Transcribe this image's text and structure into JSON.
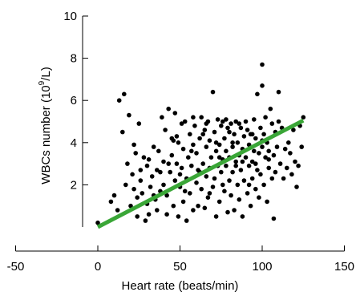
{
  "chart_data": {
    "type": "scatter",
    "title": "",
    "xlabel": "Heart rate (beats/min)",
    "ylabel": "WBCs number (10⁹/L)",
    "ylabel_parts": {
      "pre": "WBCs number (10",
      "sup": "9",
      "post": "/L)"
    },
    "xlim": [
      -50,
      150
    ],
    "ylim": [
      0,
      10
    ],
    "x_ticks": [
      -50,
      0,
      50,
      100,
      150
    ],
    "y_ticks": [
      2,
      4,
      6,
      8,
      10
    ],
    "grid": false,
    "legend": "none",
    "colors": {
      "points": "#000000",
      "fit_line": "#3aa637"
    },
    "series": [
      {
        "points": [
          [
            0,
            0.2
          ],
          [
            8,
            1.2
          ],
          [
            10,
            1.5
          ],
          [
            12,
            0.8
          ],
          [
            13,
            6.0
          ],
          [
            15,
            4.5
          ],
          [
            16,
            6.3
          ],
          [
            17,
            2.0
          ],
          [
            18,
            3.0
          ],
          [
            19,
            5.3
          ],
          [
            20,
            1.0
          ],
          [
            21,
            2.5
          ],
          [
            22,
            1.8
          ],
          [
            23,
            3.5
          ],
          [
            24,
            0.5
          ],
          [
            24,
            1.4
          ],
          [
            25,
            4.9
          ],
          [
            26,
            2.2
          ],
          [
            27,
            1.6
          ],
          [
            28,
            3.3
          ],
          [
            29,
            0.3
          ],
          [
            30,
            2.9
          ],
          [
            30,
            1.1
          ],
          [
            31,
            0.6
          ],
          [
            32,
            1.9
          ],
          [
            33,
            2.4
          ],
          [
            34,
            3.8
          ],
          [
            35,
            1.3
          ],
          [
            36,
            2.7
          ],
          [
            36,
            0.8
          ],
          [
            37,
            3.6
          ],
          [
            38,
            1.7
          ],
          [
            39,
            5.2
          ],
          [
            40,
            3.1
          ],
          [
            40,
            2.0
          ],
          [
            41,
            4.6
          ],
          [
            42,
            1.5
          ],
          [
            42,
            0.6
          ],
          [
            43,
            5.6
          ],
          [
            44,
            2.6
          ],
          [
            45,
            3.4
          ],
          [
            45,
            4.2
          ],
          [
            46,
            1.0
          ],
          [
            47,
            2.2
          ],
          [
            47,
            5.4
          ],
          [
            48,
            3.0
          ],
          [
            49,
            0.5
          ],
          [
            49,
            4.0
          ],
          [
            50,
            1.9
          ],
          [
            51,
            2.8
          ],
          [
            51,
            4.9
          ],
          [
            52,
            3.7
          ],
          [
            52,
            1.2
          ],
          [
            53,
            5.0
          ],
          [
            54,
            2.3
          ],
          [
            54,
            0.3
          ],
          [
            55,
            3.3
          ],
          [
            56,
            4.4
          ],
          [
            56,
            1.6
          ],
          [
            57,
            2.9
          ],
          [
            58,
            3.9
          ],
          [
            58,
            0.8
          ],
          [
            59,
            4.8
          ],
          [
            60,
            2.1
          ],
          [
            60,
            3.5
          ],
          [
            61,
            1.0
          ],
          [
            62,
            4.2
          ],
          [
            62,
            2.6
          ],
          [
            63,
            5.2
          ],
          [
            63,
            1.8
          ],
          [
            64,
            3.0
          ],
          [
            65,
            4.6
          ],
          [
            65,
            0.9
          ],
          [
            66,
            2.4
          ],
          [
            66,
            3.8
          ],
          [
            67,
            5.0
          ],
          [
            67,
            1.4
          ],
          [
            68,
            2.8
          ],
          [
            68,
            4.1
          ],
          [
            69,
            3.3
          ],
          [
            70,
            6.4
          ],
          [
            70,
            1.9
          ],
          [
            71,
            4.5
          ],
          [
            71,
            2.3
          ],
          [
            72,
            3.6
          ],
          [
            72,
            0.5
          ],
          [
            73,
            5.1
          ],
          [
            73,
            2.9
          ],
          [
            74,
            3.9
          ],
          [
            74,
            1.2
          ],
          [
            75,
            4.8
          ],
          [
            75,
            2.6
          ],
          [
            76,
            3.2
          ],
          [
            76,
            5.0
          ],
          [
            77,
            1.7
          ],
          [
            77,
            4.2
          ],
          [
            78,
            2.9
          ],
          [
            78,
            3.6
          ],
          [
            79,
            0.7
          ],
          [
            79,
            4.7
          ],
          [
            80,
            2.2
          ],
          [
            80,
            3.3
          ],
          [
            81,
            4.9
          ],
          [
            81,
            1.5
          ],
          [
            82,
            3.8
          ],
          [
            82,
            2.6
          ],
          [
            83,
            4.4
          ],
          [
            83,
            0.8
          ],
          [
            84,
            3.1
          ],
          [
            84,
            5.0
          ],
          [
            85,
            2.0
          ],
          [
            85,
            4.0
          ],
          [
            86,
            3.4
          ],
          [
            86,
            1.3
          ],
          [
            87,
            4.7
          ],
          [
            87,
            2.7
          ],
          [
            88,
            3.7
          ],
          [
            88,
            0.5
          ],
          [
            89,
            4.3
          ],
          [
            89,
            2.2
          ],
          [
            90,
            3.3
          ],
          [
            90,
            5.0
          ],
          [
            91,
            1.6
          ],
          [
            91,
            4.6
          ],
          [
            92,
            2.9
          ],
          [
            92,
            3.9
          ],
          [
            93,
            1.0
          ],
          [
            93,
            4.4
          ],
          [
            94,
            3.1
          ],
          [
            94,
            2.3
          ],
          [
            95,
            5.1
          ],
          [
            95,
            3.6
          ],
          [
            96,
            1.8
          ],
          [
            96,
            4.2
          ],
          [
            97,
            2.7
          ],
          [
            97,
            6.3
          ],
          [
            98,
            3.5
          ],
          [
            98,
            1.4
          ],
          [
            99,
            4.7
          ],
          [
            99,
            2.5
          ],
          [
            100,
            7.7
          ],
          [
            100,
            6.7
          ],
          [
            100,
            3.8
          ],
          [
            101,
            4.4
          ],
          [
            101,
            2.0
          ],
          [
            102,
            3.3
          ],
          [
            102,
            5.2
          ],
          [
            103,
            1.2
          ],
          [
            103,
            4.0
          ],
          [
            104,
            2.8
          ],
          [
            104,
            3.6
          ],
          [
            105,
            5.6
          ],
          [
            106,
            2.3
          ],
          [
            106,
            4.9
          ],
          [
            107,
            0.4
          ],
          [
            107,
            3.4
          ],
          [
            108,
            4.5
          ],
          [
            108,
            2.6
          ],
          [
            109,
            3.8
          ],
          [
            110,
            6.4
          ],
          [
            110,
            5.0
          ],
          [
            111,
            3.0
          ],
          [
            112,
            4.7
          ],
          [
            113,
            2.3
          ],
          [
            114,
            3.7
          ],
          [
            115,
            2.8
          ],
          [
            116,
            4.0
          ],
          [
            117,
            3.5
          ],
          [
            118,
            2.5
          ],
          [
            119,
            4.6
          ],
          [
            120,
            3.1
          ],
          [
            121,
            1.9
          ],
          [
            122,
            2.9
          ],
          [
            123,
            4.8
          ],
          [
            124,
            3.8
          ],
          [
            125,
            5.2
          ],
          [
            22,
            3.9
          ],
          [
            26,
            2.7
          ],
          [
            31,
            3.2
          ],
          [
            34,
            1.5
          ],
          [
            38,
            2.6
          ],
          [
            43,
            3.0
          ],
          [
            46,
            4.1
          ],
          [
            50,
            2.5
          ],
          [
            53,
            1.7
          ],
          [
            57,
            3.6
          ],
          [
            61,
            2.7
          ],
          [
            64,
            4.4
          ],
          [
            68,
            1.6
          ],
          [
            72,
            4.0
          ],
          [
            76,
            2.0
          ],
          [
            80,
            4.5
          ],
          [
            84,
            2.9
          ],
          [
            88,
            3.1
          ],
          [
            92,
            2.0
          ],
          [
            96,
            3.0
          ],
          [
            100,
            4.1
          ],
          [
            104,
            3.2
          ],
          [
            58,
            5.2
          ],
          [
            48,
            4.3
          ],
          [
            66,
            4.9
          ],
          [
            78,
            5.1
          ],
          [
            86,
            4.9
          ],
          [
            94,
            4.4
          ],
          [
            74,
            3.3
          ],
          [
            82,
            4.0
          ]
        ]
      }
    ],
    "fit_line": {
      "x": [
        0,
        125
      ],
      "y": [
        0,
        5.05
      ]
    }
  }
}
